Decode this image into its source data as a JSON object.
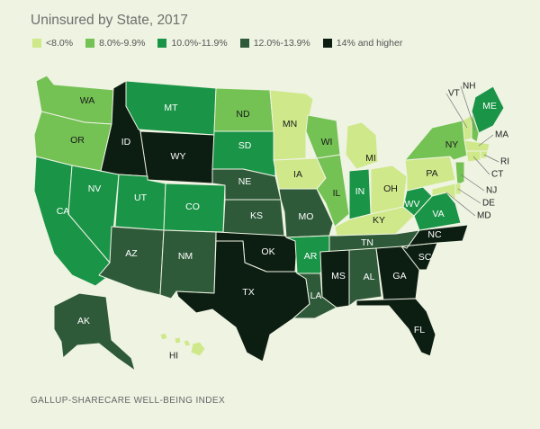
{
  "title": "Uninsured by State, 2017",
  "source": "GALLUP-SHARECARE WELL-BEING INDEX",
  "legend": [
    {
      "label": "<8.0%",
      "color": "#cfe88a"
    },
    {
      "label": "8.0%-9.9%",
      "color": "#74c154"
    },
    {
      "label": "10.0%-11.9%",
      "color": "#1a9447"
    },
    {
      "label": "12.0%-13.9%",
      "color": "#2f5a3a"
    },
    {
      "label": "14% and higher",
      "color": "#0c1d12"
    }
  ],
  "map_data": {
    "categories": [
      "<8.0%",
      "8.0%-9.9%",
      "10.0%-11.9%",
      "12.0%-13.9%",
      "14% and higher"
    ],
    "states": [
      {
        "abbr": "WA",
        "bin": 1
      },
      {
        "abbr": "OR",
        "bin": 1
      },
      {
        "abbr": "CA",
        "bin": 2
      },
      {
        "abbr": "NV",
        "bin": 2
      },
      {
        "abbr": "ID",
        "bin": 4
      },
      {
        "abbr": "MT",
        "bin": 2
      },
      {
        "abbr": "WY",
        "bin": 4
      },
      {
        "abbr": "UT",
        "bin": 2
      },
      {
        "abbr": "CO",
        "bin": 2
      },
      {
        "abbr": "AZ",
        "bin": 3
      },
      {
        "abbr": "NM",
        "bin": 3
      },
      {
        "abbr": "ND",
        "bin": 1
      },
      {
        "abbr": "SD",
        "bin": 2
      },
      {
        "abbr": "NE",
        "bin": 3
      },
      {
        "abbr": "KS",
        "bin": 3
      },
      {
        "abbr": "OK",
        "bin": 4
      },
      {
        "abbr": "TX",
        "bin": 4
      },
      {
        "abbr": "MN",
        "bin": 0
      },
      {
        "abbr": "IA",
        "bin": 0
      },
      {
        "abbr": "MO",
        "bin": 3
      },
      {
        "abbr": "AR",
        "bin": 2
      },
      {
        "abbr": "LA",
        "bin": 3
      },
      {
        "abbr": "WI",
        "bin": 1
      },
      {
        "abbr": "IL",
        "bin": 1
      },
      {
        "abbr": "MI",
        "bin": 0
      },
      {
        "abbr": "IN",
        "bin": 2
      },
      {
        "abbr": "OH",
        "bin": 0
      },
      {
        "abbr": "KY",
        "bin": 0
      },
      {
        "abbr": "TN",
        "bin": 3
      },
      {
        "abbr": "MS",
        "bin": 4
      },
      {
        "abbr": "AL",
        "bin": 3
      },
      {
        "abbr": "GA",
        "bin": 4
      },
      {
        "abbr": "FL",
        "bin": 4
      },
      {
        "abbr": "SC",
        "bin": 4
      },
      {
        "abbr": "NC",
        "bin": 4
      },
      {
        "abbr": "VA",
        "bin": 2
      },
      {
        "abbr": "WV",
        "bin": 2
      },
      {
        "abbr": "PA",
        "bin": 0
      },
      {
        "abbr": "NY",
        "bin": 1
      },
      {
        "abbr": "ME",
        "bin": 2
      },
      {
        "abbr": "VT",
        "bin": 0
      },
      {
        "abbr": "NH",
        "bin": 1
      },
      {
        "abbr": "MA",
        "bin": 0
      },
      {
        "abbr": "RI",
        "bin": 0
      },
      {
        "abbr": "CT",
        "bin": 0
      },
      {
        "abbr": "NJ",
        "bin": 1
      },
      {
        "abbr": "DE",
        "bin": 0
      },
      {
        "abbr": "MD",
        "bin": 0
      },
      {
        "abbr": "AK",
        "bin": 3
      },
      {
        "abbr": "HI",
        "bin": 0
      }
    ]
  }
}
